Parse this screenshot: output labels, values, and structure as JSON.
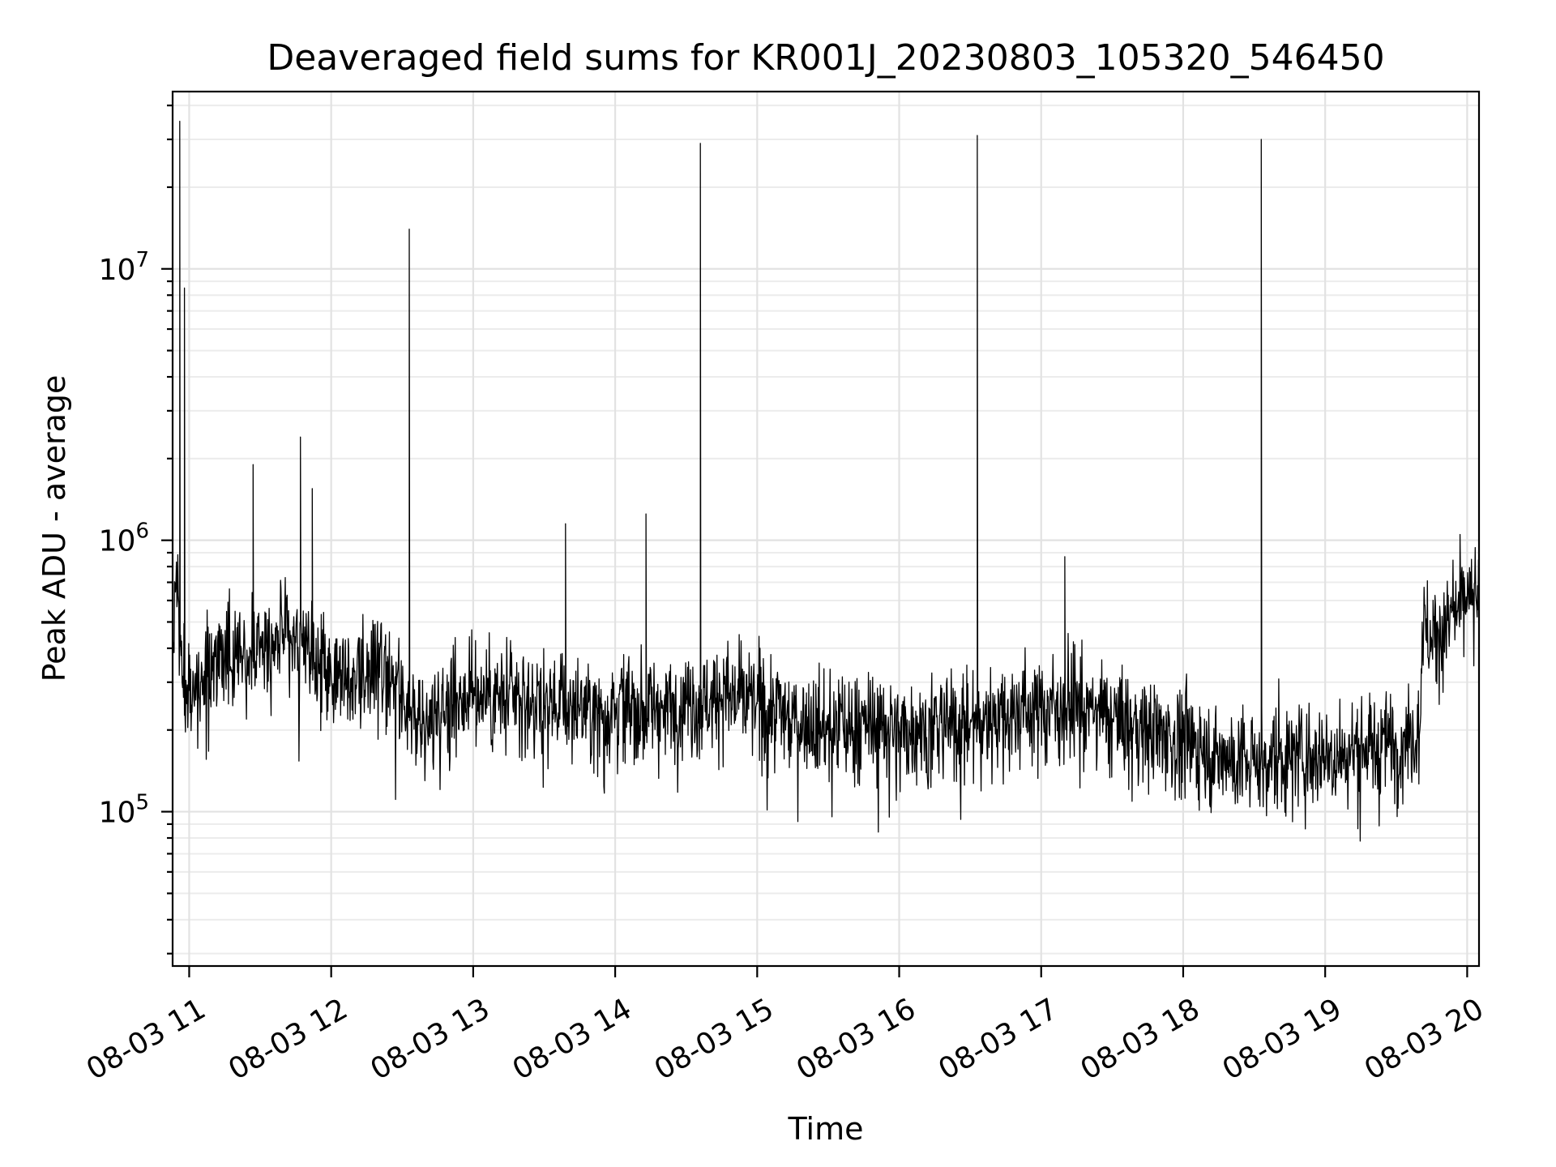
{
  "chart_data": {
    "type": "line",
    "title": "Deaveraged field sums for KR001J_20230803_105320_546450",
    "xlabel": "Time",
    "ylabel": "Peak ADU - average",
    "x_tick_labels": [
      "08-03 11",
      "08-03 12",
      "08-03 13",
      "08-03 14",
      "08-03 15",
      "08-03 16",
      "08-03 17",
      "08-03 18",
      "08-03 19",
      "08-03 20"
    ],
    "x_ticks": [
      "2023-08-03 11:00",
      "2023-08-03 12:00",
      "2023-08-03 13:00",
      "2023-08-03 14:00",
      "2023-08-03 15:00",
      "2023-08-03 16:00",
      "2023-08-03 17:00",
      "2023-08-03 18:00",
      "2023-08-03 19:00",
      "2023-08-03 20:00"
    ],
    "xlim": [
      "2023-08-03 10:53",
      "2023-08-03 20:05"
    ],
    "y_scale": "log",
    "y_ticks": [
      {
        "base": "10",
        "exp": "5",
        "value": 100000
      },
      {
        "base": "10",
        "exp": "6",
        "value": 1000000
      },
      {
        "base": "10",
        "exp": "7",
        "value": 10000000
      }
    ],
    "ylim": [
      27000,
      45000000
    ],
    "grid": true,
    "legend": false,
    "line_color": "#000000",
    "series": [
      {
        "x": [
          "2023-08-03 10:53",
          "2023-08-03 10:55",
          "2023-08-03 10:56",
          "2023-08-03 10:57",
          "2023-08-03 10:58",
          "2023-08-03 10:59",
          "2023-08-03 11:00",
          "2023-08-03 11:05",
          "2023-08-03 11:10",
          "2023-08-03 11:15",
          "2023-08-03 11:20",
          "2023-08-03 11:27",
          "2023-08-03 11:30",
          "2023-08-03 11:35",
          "2023-08-03 11:40",
          "2023-08-03 11:45",
          "2023-08-03 11:47",
          "2023-08-03 11:50",
          "2023-08-03 11:52",
          "2023-08-03 11:55",
          "2023-08-03 12:00",
          "2023-08-03 12:10",
          "2023-08-03 12:15",
          "2023-08-03 12:20",
          "2023-08-03 12:25",
          "2023-08-03 12:30",
          "2023-08-03 12:33",
          "2023-08-03 12:36",
          "2023-08-03 12:40",
          "2023-08-03 12:45",
          "2023-08-03 13:00",
          "2023-08-03 13:15",
          "2023-08-03 13:30",
          "2023-08-03 13:35",
          "2023-08-03 13:39",
          "2023-08-03 13:45",
          "2023-08-03 13:53",
          "2023-08-03 14:00",
          "2023-08-03 14:13",
          "2023-08-03 14:20",
          "2023-08-03 14:30",
          "2023-08-03 14:33",
          "2023-08-03 14:36",
          "2023-08-03 14:40",
          "2023-08-03 14:45",
          "2023-08-03 15:00",
          "2023-08-03 15:15",
          "2023-08-03 15:30",
          "2023-08-03 15:45",
          "2023-08-03 16:00",
          "2023-08-03 16:15",
          "2023-08-03 16:30",
          "2023-08-03 16:33",
          "2023-08-03 16:36",
          "2023-08-03 16:40",
          "2023-08-03 16:45",
          "2023-08-03 17:00",
          "2023-08-03 17:10",
          "2023-08-03 17:15",
          "2023-08-03 17:30",
          "2023-08-03 17:45",
          "2023-08-03 18:00",
          "2023-08-03 18:15",
          "2023-08-03 18:30",
          "2023-08-03 18:33",
          "2023-08-03 18:36",
          "2023-08-03 18:40",
          "2023-08-03 18:45",
          "2023-08-03 19:00",
          "2023-08-03 19:15",
          "2023-08-03 19:30",
          "2023-08-03 19:40",
          "2023-08-03 19:41",
          "2023-08-03 19:45",
          "2023-08-03 19:50",
          "2023-08-03 19:55",
          "2023-08-03 20:00",
          "2023-08-03 20:05"
        ],
        "y": [
          480000,
          600000,
          35000000,
          300000,
          8500000,
          250000,
          280000,
          300000,
          330000,
          380000,
          400000,
          1900000,
          420000,
          430000,
          450000,
          420000,
          2400000,
          380000,
          1550000,
          350000,
          320000,
          330000,
          320000,
          340000,
          300000,
          230000,
          14000000,
          220000,
          210000,
          240000,
          270000,
          260000,
          240000,
          250000,
          1150000,
          240000,
          230000,
          250000,
          1250000,
          240000,
          250000,
          250000,
          29000000,
          260000,
          270000,
          250000,
          220000,
          200000,
          210000,
          200000,
          210000,
          210000,
          31000000,
          215000,
          225000,
          230000,
          240000,
          870000,
          250000,
          220000,
          200000,
          180000,
          160000,
          150000,
          30000000,
          155000,
          160000,
          160000,
          160000,
          170000,
          180000,
          200000,
          500000,
          430000,
          480000,
          520000,
          580000,
          620000
        ]
      }
    ]
  }
}
